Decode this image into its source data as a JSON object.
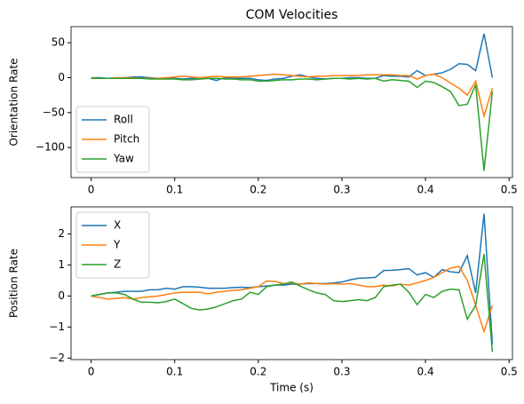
{
  "chart_data": [
    {
      "type": "line",
      "title": "COM Velocities",
      "ylabel": "Orientation Rate",
      "x": [
        0,
        0.01,
        0.02,
        0.03,
        0.04,
        0.05,
        0.06,
        0.07,
        0.08,
        0.09,
        0.1,
        0.11,
        0.12,
        0.13,
        0.14,
        0.15,
        0.16,
        0.17,
        0.18,
        0.19,
        0.2,
        0.21,
        0.22,
        0.23,
        0.24,
        0.25,
        0.26,
        0.27,
        0.28,
        0.29,
        0.3,
        0.31,
        0.32,
        0.33,
        0.34,
        0.35,
        0.36,
        0.37,
        0.38,
        0.39,
        0.4,
        0.41,
        0.42,
        0.43,
        0.44,
        0.45,
        0.46,
        0.47,
        0.48
      ],
      "series": [
        {
          "name": "Roll",
          "color": "#1f77b4",
          "values": [
            0,
            0,
            -1,
            -1,
            0,
            1,
            1,
            0,
            -1,
            -1,
            -1,
            -2,
            -1,
            -2,
            -1,
            -4,
            0,
            -1,
            -1,
            -1,
            -3,
            -4,
            -2,
            -1,
            2,
            4,
            1,
            -1,
            -2,
            -1,
            -1,
            0,
            0,
            -1,
            -1,
            3,
            2,
            2,
            1,
            10,
            3,
            5,
            7,
            12,
            20,
            19,
            10,
            63,
            0
          ]
        },
        {
          "name": "Pitch",
          "color": "#ff7f0e",
          "values": [
            0,
            -1,
            -1,
            0,
            0,
            0,
            -1,
            -1,
            -1,
            0,
            1,
            2,
            1,
            0,
            1,
            2,
            1,
            1,
            1,
            2,
            3,
            4,
            5,
            4,
            3,
            2,
            1,
            2,
            2,
            3,
            3,
            3,
            3,
            4,
            4,
            4,
            4,
            3,
            3,
            -2,
            3,
            5,
            0,
            -8,
            -15,
            -25,
            -5,
            -55,
            -15
          ]
        },
        {
          "name": "Yaw",
          "color": "#2ca02c",
          "values": [
            -1,
            -1,
            -1,
            -1,
            -1,
            -1,
            -1,
            -2,
            -2,
            -2,
            -2,
            -3,
            -3,
            -2,
            -1,
            -1,
            -2,
            -2,
            -3,
            -3,
            -5,
            -5,
            -4,
            -3,
            -3,
            -2,
            -2,
            -3,
            -2,
            -1,
            -1,
            -2,
            -1,
            -2,
            -1,
            -5,
            -3,
            -4,
            -5,
            -14,
            -5,
            -7,
            -13,
            -20,
            -40,
            -38,
            -10,
            -133,
            -20
          ]
        }
      ],
      "xlim": [
        -0.024,
        0.504
      ],
      "xticks": [
        0,
        0.1,
        0.2,
        0.3,
        0.4,
        0.5
      ],
      "ylim": [
        -143,
        73
      ],
      "yticks": [
        {
          "value": -100,
          "label": "−100"
        },
        {
          "value": -50,
          "label": "−50"
        },
        0,
        50
      ],
      "legend": "lower left"
    },
    {
      "type": "line",
      "xlabel": "Time (s)",
      "ylabel": "Position Rate",
      "x": [
        0,
        0.01,
        0.02,
        0.03,
        0.04,
        0.05,
        0.06,
        0.07,
        0.08,
        0.09,
        0.1,
        0.11,
        0.12,
        0.13,
        0.14,
        0.15,
        0.16,
        0.17,
        0.18,
        0.19,
        0.2,
        0.21,
        0.22,
        0.23,
        0.24,
        0.25,
        0.26,
        0.27,
        0.28,
        0.29,
        0.3,
        0.31,
        0.32,
        0.33,
        0.34,
        0.35,
        0.36,
        0.37,
        0.38,
        0.39,
        0.4,
        0.41,
        0.42,
        0.43,
        0.44,
        0.45,
        0.46,
        0.47,
        0.48
      ],
      "series": [
        {
          "name": "X",
          "color": "#1f77b4",
          "values": [
            0,
            0.05,
            0.1,
            0.12,
            0.15,
            0.15,
            0.15,
            0.2,
            0.2,
            0.25,
            0.22,
            0.3,
            0.3,
            0.28,
            0.25,
            0.25,
            0.25,
            0.27,
            0.28,
            0.27,
            0.3,
            0.32,
            0.35,
            0.35,
            0.38,
            0.38,
            0.4,
            0.4,
            0.4,
            0.42,
            0.45,
            0.52,
            0.57,
            0.58,
            0.6,
            0.82,
            0.83,
            0.85,
            0.88,
            0.68,
            0.75,
            0.6,
            0.85,
            0.78,
            0.75,
            1.3,
            0.1,
            2.65,
            -1.55
          ]
        },
        {
          "name": "Y",
          "color": "#ff7f0e",
          "values": [
            0,
            -0.05,
            -0.1,
            -0.08,
            -0.05,
            -0.1,
            -0.05,
            -0.03,
            0,
            0.05,
            0.1,
            0.12,
            0.12,
            0.12,
            0.07,
            0.12,
            0.15,
            0.18,
            0.2,
            0.25,
            0.3,
            0.48,
            0.47,
            0.4,
            0.42,
            0.38,
            0.42,
            0.4,
            0.38,
            0.4,
            0.38,
            0.4,
            0.35,
            0.3,
            0.3,
            0.35,
            0.32,
            0.38,
            0.35,
            0.42,
            0.5,
            0.6,
            0.75,
            0.9,
            0.95,
            0.5,
            -0.3,
            -1.15,
            -0.3
          ]
        },
        {
          "name": "Z",
          "color": "#2ca02c",
          "values": [
            0,
            0.05,
            0.1,
            0.1,
            0.05,
            -0.1,
            -0.2,
            -0.2,
            -0.22,
            -0.18,
            -0.1,
            -0.25,
            -0.4,
            -0.45,
            -0.42,
            -0.35,
            -0.25,
            -0.15,
            -0.1,
            0.12,
            0.05,
            0.3,
            0.35,
            0.38,
            0.45,
            0.32,
            0.2,
            0.1,
            0.05,
            -0.15,
            -0.18,
            -0.15,
            -0.12,
            -0.15,
            -0.05,
            0.3,
            0.35,
            0.38,
            0.12,
            -0.28,
            0.05,
            -0.05,
            0.15,
            0.22,
            0.2,
            -0.75,
            -0.3,
            1.35,
            -1.8
          ]
        }
      ],
      "xlim": [
        -0.024,
        0.504
      ],
      "xticks": [
        0,
        0.1,
        0.2,
        0.3,
        0.4,
        0.5
      ],
      "ylim": [
        -2.05,
        2.87
      ],
      "yticks": [
        {
          "value": -2,
          "label": "−2"
        },
        {
          "value": -1,
          "label": "−1"
        },
        0,
        1,
        2
      ],
      "legend": "upper left"
    }
  ]
}
